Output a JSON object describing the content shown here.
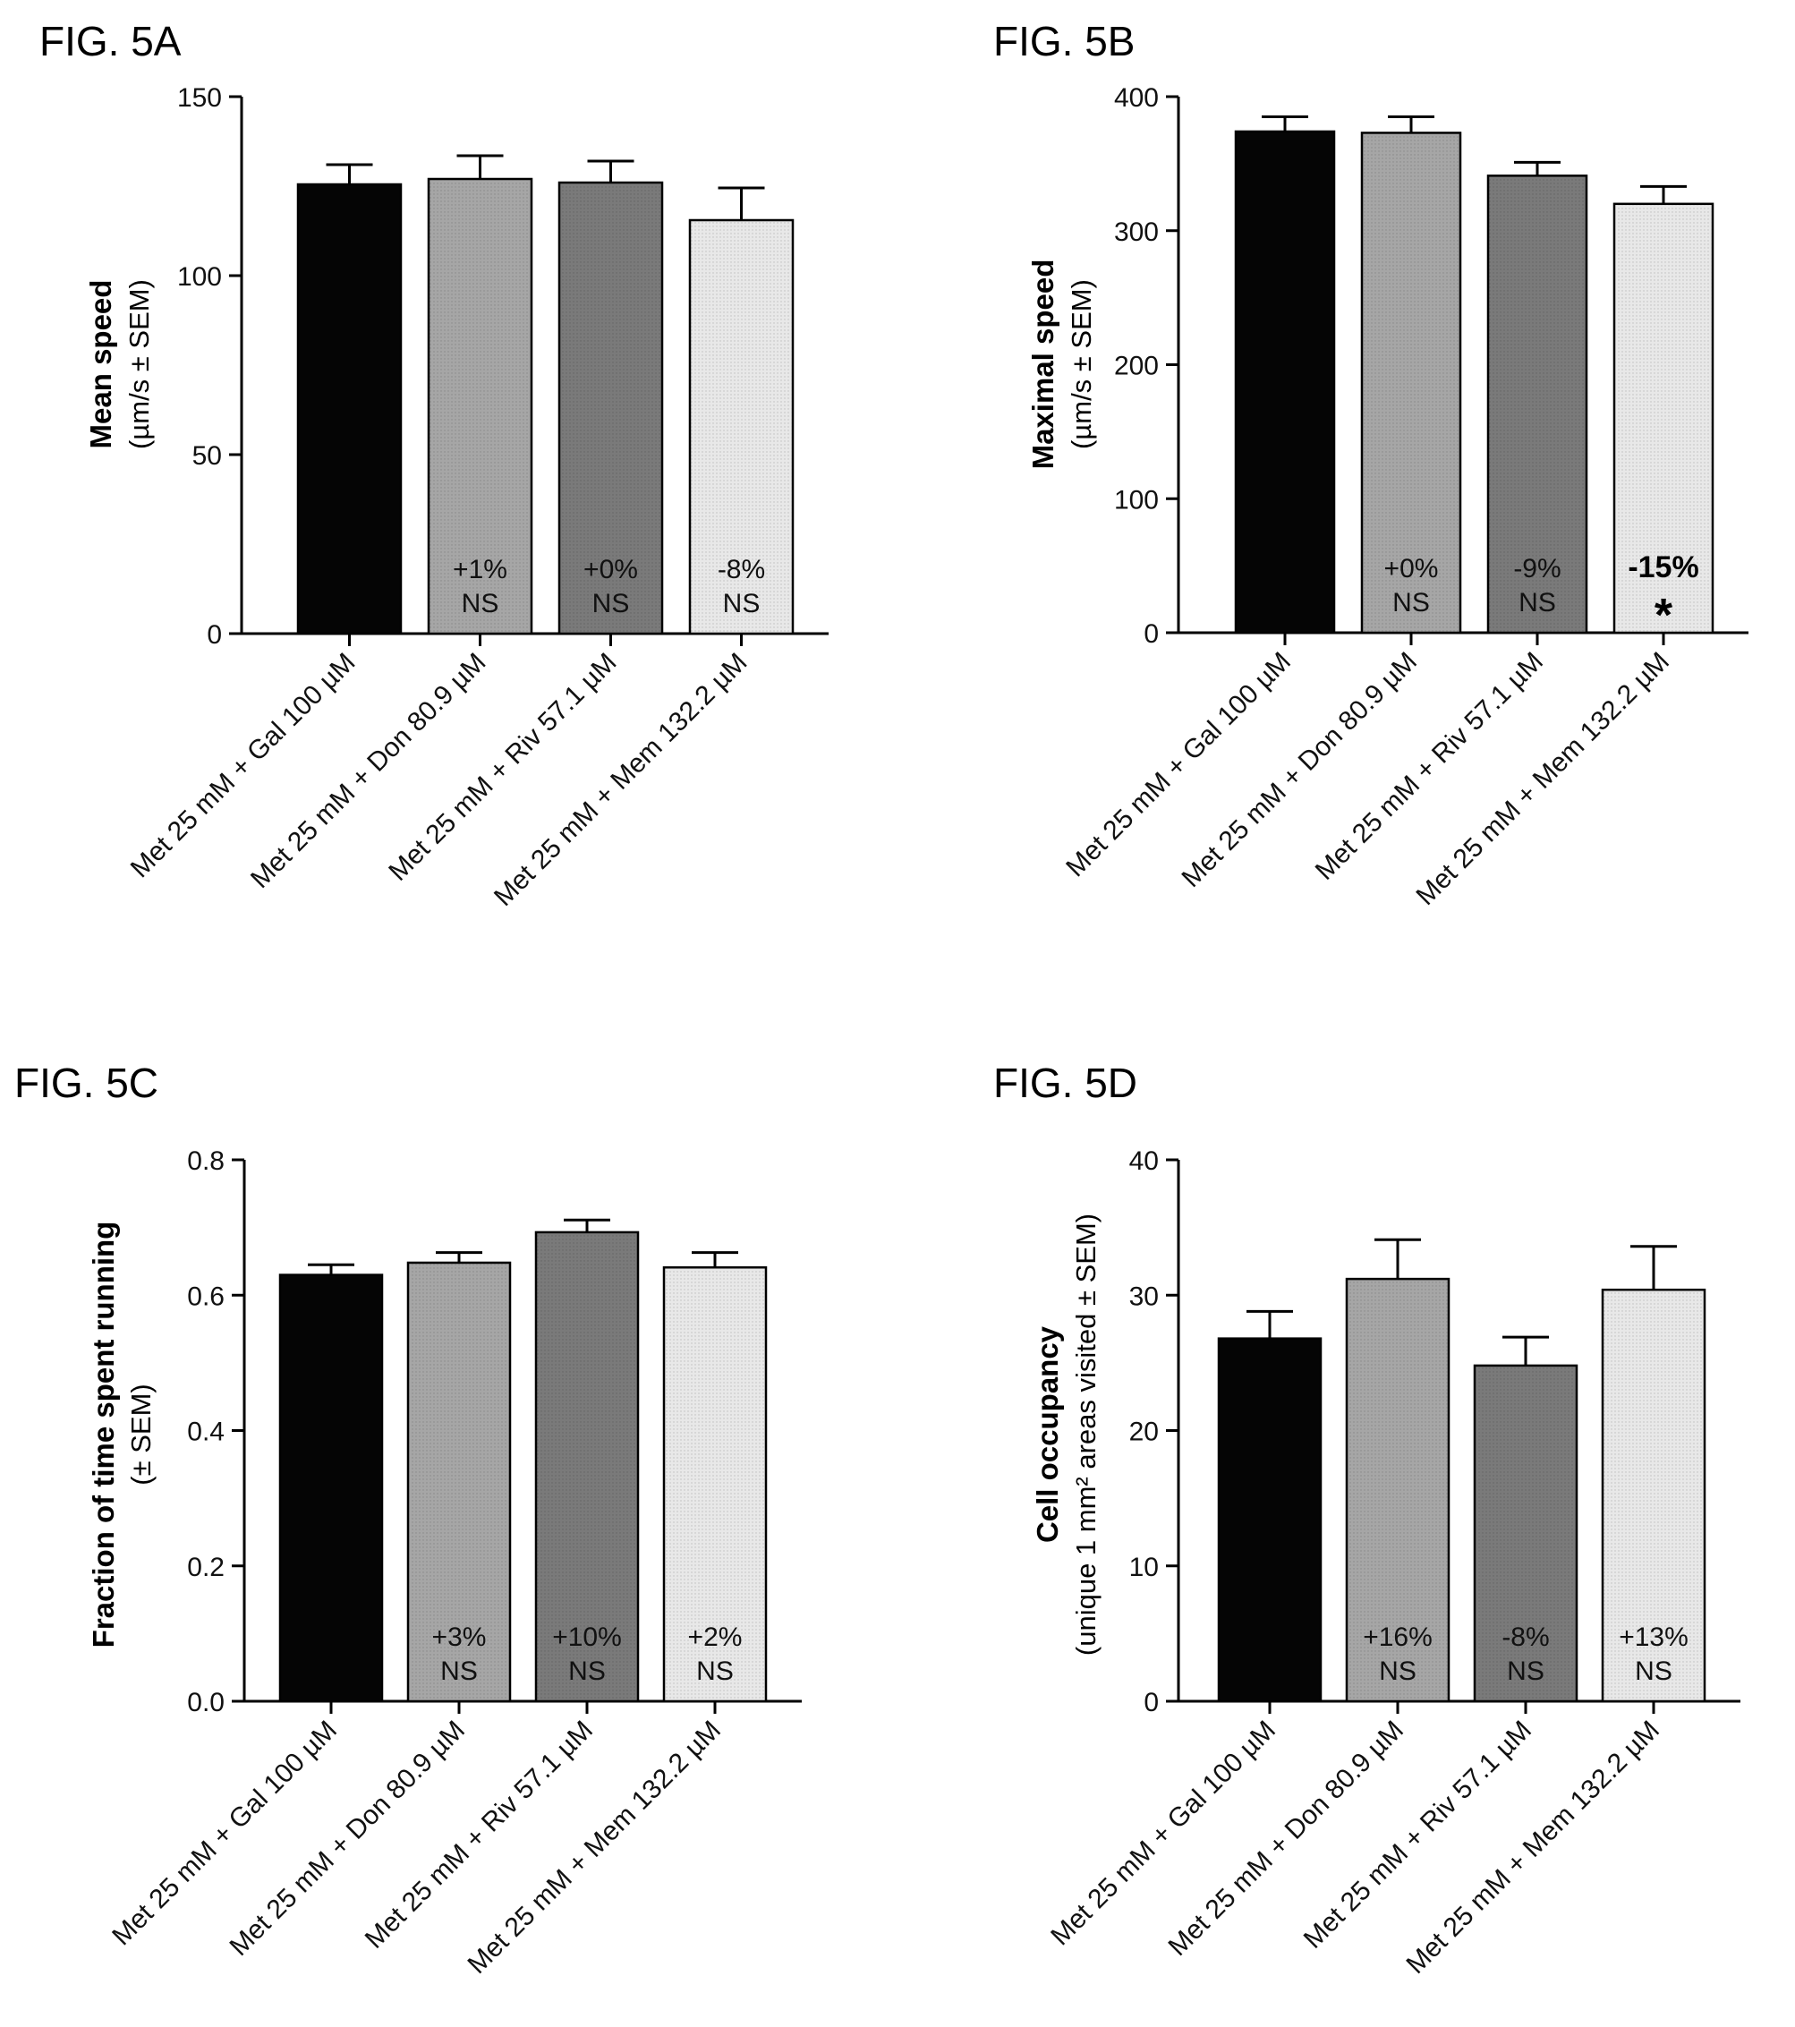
{
  "chart_data": [
    {
      "type": "bar",
      "figure_label": "FIG. 5A",
      "ylabel_bold": "Mean speed",
      "ylabel_sub": "(µm/s ± SEM)",
      "ylim": [
        0,
        150
      ],
      "yticks": [
        "0",
        "50",
        "100",
        "150"
      ],
      "ytick_values": [
        0,
        50,
        100,
        150
      ],
      "categories": [
        "Met 25 mM + Gal 100 µM",
        "Met 25 mM + Don 80.9 µM",
        "Met 25 mM + Riv 57.1 µM",
        "Met 25 mM + Mem 132.2 µM"
      ],
      "values": [
        125.5,
        127,
        126,
        115.5
      ],
      "errors": [
        5.5,
        6.5,
        6,
        9
      ],
      "bar_colors": [
        "#050505",
        "#a6a6a6",
        "#7a7a7a",
        "#e8e8e8"
      ],
      "annotations": [
        {
          "line1": "",
          "line2": "",
          "bold": false
        },
        {
          "line1": "+1%",
          "line2": "NS",
          "bold": false
        },
        {
          "line1": "+0%",
          "line2": "NS",
          "bold": false
        },
        {
          "line1": "-8%",
          "line2": "NS",
          "bold": false
        }
      ]
    },
    {
      "type": "bar",
      "figure_label": "FIG. 5B",
      "ylabel_bold": "Maximal speed",
      "ylabel_sub": "(µm/s ± SEM)",
      "ylim": [
        0,
        400
      ],
      "yticks": [
        "0",
        "100",
        "200",
        "300",
        "400"
      ],
      "ytick_values": [
        0,
        100,
        200,
        300,
        400
      ],
      "categories": [
        "Met 25 mM + Gal 100 µM",
        "Met 25 mM + Don 80.9 µM",
        "Met 25 mM + Riv 57.1 µM",
        "Met 25 mM + Mem 132.2 µM"
      ],
      "values": [
        374,
        373,
        341,
        320
      ],
      "errors": [
        11,
        12,
        10,
        13
      ],
      "bar_colors": [
        "#050505",
        "#a6a6a6",
        "#7a7a7a",
        "#e8e8e8"
      ],
      "annotations": [
        {
          "line1": "",
          "line2": "",
          "bold": false
        },
        {
          "line1": "+0%",
          "line2": "NS",
          "bold": false
        },
        {
          "line1": "-9%",
          "line2": "NS",
          "bold": false
        },
        {
          "line1": "-15%",
          "line2": "*",
          "bold": true
        }
      ]
    },
    {
      "type": "bar",
      "figure_label": "FIG. 5C",
      "ylabel_bold": "Fraction of time spent running",
      "ylabel_sub": "(± SEM)",
      "ylim": [
        0,
        0.8
      ],
      "yticks": [
        "0.0",
        "0.2",
        "0.4",
        "0.6",
        "0.8"
      ],
      "ytick_values": [
        0,
        0.2,
        0.4,
        0.6,
        0.8
      ],
      "categories": [
        "Met 25 mM + Gal 100 µM",
        "Met 25 mM + Don 80.9 µM",
        "Met 25 mM + Riv 57.1 µM",
        "Met 25 mM + Mem 132.2 µM"
      ],
      "values": [
        0.63,
        0.648,
        0.693,
        0.641
      ],
      "errors": [
        0.015,
        0.015,
        0.018,
        0.022
      ],
      "bar_colors": [
        "#050505",
        "#a6a6a6",
        "#7a7a7a",
        "#e8e8e8"
      ],
      "annotations": [
        {
          "line1": "",
          "line2": "",
          "bold": false
        },
        {
          "line1": "+3%",
          "line2": "NS",
          "bold": false
        },
        {
          "line1": "+10%",
          "line2": "NS",
          "bold": false
        },
        {
          "line1": "+2%",
          "line2": "NS",
          "bold": false
        }
      ]
    },
    {
      "type": "bar",
      "figure_label": "FIG. 5D",
      "ylabel_bold": "Cell occupancy",
      "ylabel_sub": "(unique 1 mm² areas visited ± SEM)",
      "ylim": [
        0,
        40
      ],
      "yticks": [
        "0",
        "10",
        "20",
        "30",
        "40"
      ],
      "ytick_values": [
        0,
        10,
        20,
        30,
        40
      ],
      "categories": [
        "Met 25 mM + Gal 100 µM",
        "Met 25 mM + Don 80.9 µM",
        "Met 25 mM + Riv 57.1 µM",
        "Met 25 mM + Mem 132.2 µM"
      ],
      "values": [
        26.8,
        31.2,
        24.8,
        30.4
      ],
      "errors": [
        2,
        2.9,
        2.1,
        3.2
      ],
      "bar_colors": [
        "#050505",
        "#a6a6a6",
        "#7a7a7a",
        "#e8e8e8"
      ],
      "annotations": [
        {
          "line1": "",
          "line2": "",
          "bold": false
        },
        {
          "line1": "+16%",
          "line2": "NS",
          "bold": false
        },
        {
          "line1": "-8%",
          "line2": "NS",
          "bold": false
        },
        {
          "line1": "+13%",
          "line2": "NS",
          "bold": false
        }
      ]
    }
  ]
}
